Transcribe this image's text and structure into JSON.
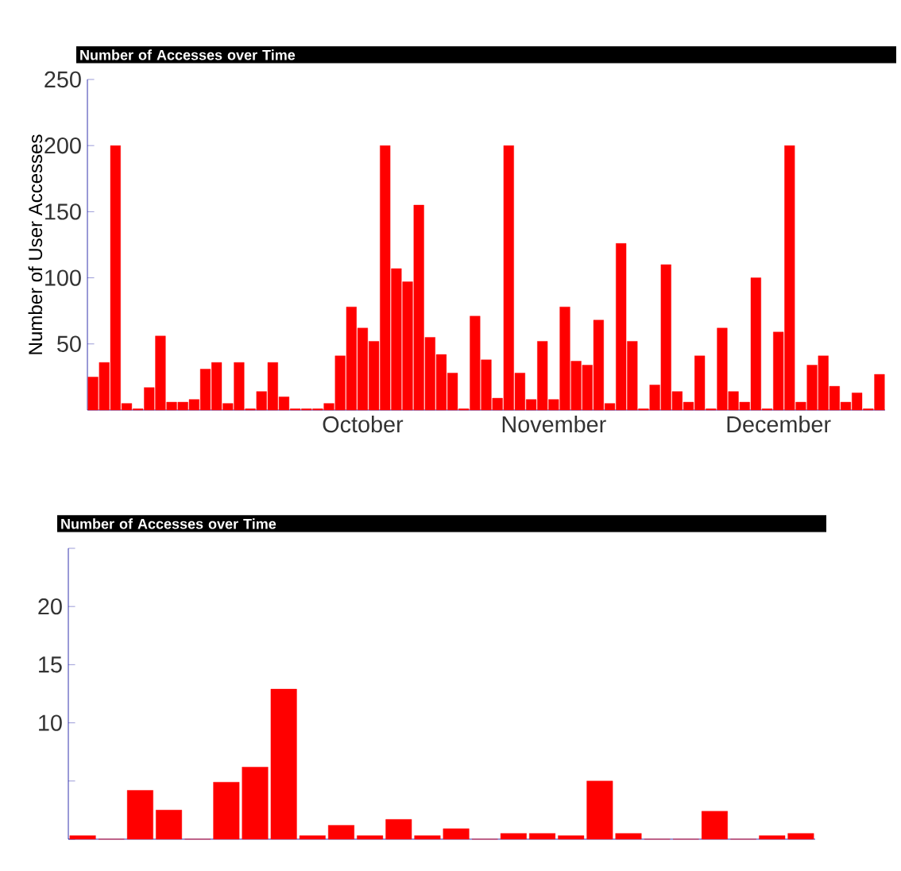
{
  "chart_data": [
    {
      "type": "bar",
      "title": "Number of Accesses over Time",
      "ylabel": "Number of User Accesses",
      "categories": [
        null,
        null,
        null,
        null,
        null,
        null,
        null,
        null,
        null,
        null,
        null,
        null,
        null,
        null,
        null,
        null,
        null,
        null,
        null,
        null,
        null,
        null,
        null,
        null,
        "October",
        null,
        null,
        null,
        null,
        null,
        null,
        null,
        null,
        null,
        null,
        null,
        null,
        null,
        null,
        null,
        null,
        "November",
        null,
        null,
        null,
        null,
        null,
        null,
        null,
        null,
        null,
        null,
        null,
        null,
        null,
        null,
        null,
        null,
        null,
        null,
        null,
        "December",
        null,
        null,
        null,
        null,
        null,
        null,
        null,
        null,
        null
      ],
      "values": [
        25,
        36,
        200,
        5,
        1,
        17,
        56,
        6,
        6,
        8,
        31,
        36,
        5,
        36,
        1,
        14,
        36,
        10,
        1,
        1,
        1,
        5,
        41,
        78,
        62,
        52,
        200,
        107,
        97,
        155,
        55,
        42,
        28,
        1,
        71,
        38,
        9,
        200,
        28,
        8,
        52,
        8,
        78,
        37,
        34,
        68,
        5,
        126,
        52,
        1,
        19,
        110,
        14,
        6,
        41,
        1,
        62,
        14,
        6,
        100,
        1,
        59,
        200,
        6,
        34,
        41,
        18,
        6,
        13,
        1,
        27
      ],
      "color": "#ff0000",
      "ylim": [
        0,
        250
      ],
      "yticks": [
        50,
        100,
        150,
        200,
        250
      ]
    },
    {
      "type": "bar",
      "title": "Number of Accesses over Time",
      "categories": [
        null,
        null,
        null,
        null,
        null,
        null,
        null,
        null,
        null,
        null,
        null,
        null,
        null,
        null,
        null,
        null,
        null,
        null,
        null,
        null,
        null,
        null,
        null,
        null,
        null,
        null
      ],
      "values": [
        0.3,
        0,
        4.2,
        2.5,
        0,
        4.9,
        6.2,
        12.9,
        0.3,
        1.2,
        0.3,
        1.7,
        0.3,
        0.9,
        0,
        0.5,
        0.5,
        0.3,
        5.0,
        0.5,
        0,
        0,
        2.4,
        0,
        0.3,
        0.5
      ],
      "color": "#ff0000",
      "ylim": [
        0,
        25
      ],
      "yticks": [
        {
          "value": 0,
          "label": null
        },
        {
          "value": 5,
          "label": null
        },
        10,
        15,
        20,
        {
          "value": 25,
          "label": null
        }
      ]
    }
  ]
}
